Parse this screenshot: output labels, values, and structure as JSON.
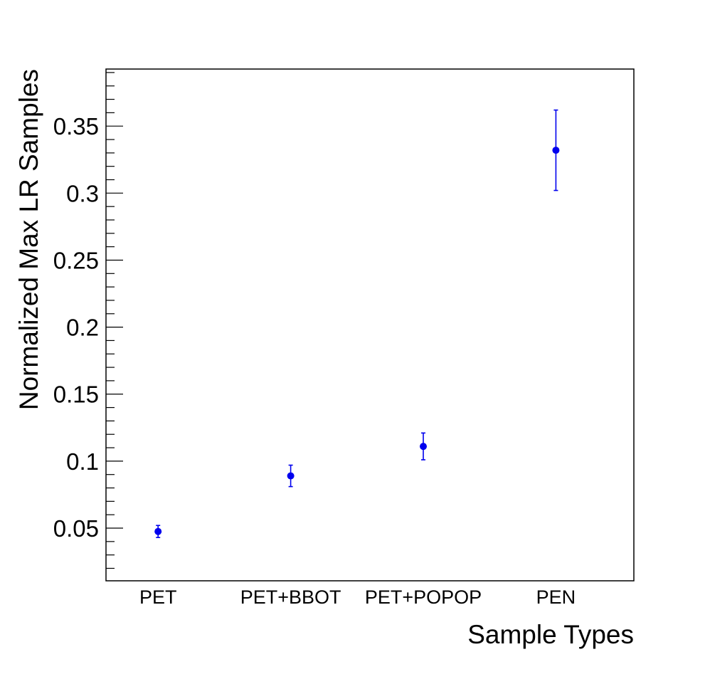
{
  "chart_data": {
    "type": "scatter",
    "xlabel": "Sample Types",
    "ylabel": "Normalized Max LR Samples",
    "categories": [
      "PET",
      "PET+BBOT",
      "PET+POPOP",
      "PEN"
    ],
    "series": [
      {
        "values": [
          0.0475,
          0.089,
          0.111,
          0.332
        ],
        "errors": [
          0.0045,
          0.008,
          0.01,
          0.03
        ]
      }
    ],
    "ylim": [
      0.0107,
      0.3926
    ],
    "yticks": [
      "0.05",
      "0.1",
      "0.15",
      "0.2",
      "0.25",
      "0.3",
      "0.35"
    ],
    "grid": false,
    "marker_color": "#0000ee"
  }
}
